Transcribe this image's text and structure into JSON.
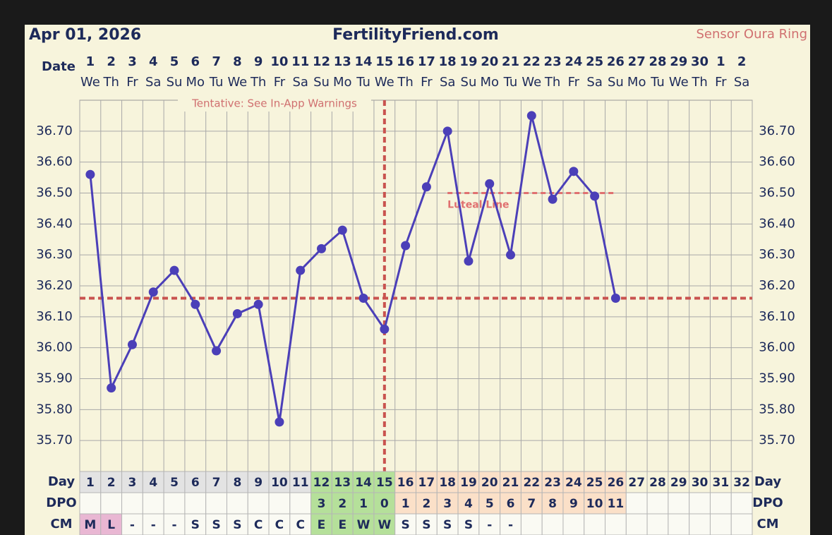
{
  "header": {
    "date": "Apr 01, 2026",
    "site": "FertilityFriend.com",
    "sensor": "Sensor Oura Ring"
  },
  "chart_data": {
    "type": "line",
    "x_label": "Date",
    "dates": [
      1,
      2,
      3,
      4,
      5,
      6,
      7,
      8,
      9,
      10,
      11,
      12,
      13,
      14,
      15,
      16,
      17,
      18,
      19,
      20,
      21,
      22,
      23,
      24,
      25,
      26,
      27,
      28,
      29,
      30,
      1,
      2
    ],
    "weekdays": [
      "We",
      "Th",
      "Fr",
      "Sa",
      "Su",
      "Mo",
      "Tu",
      "We",
      "Th",
      "Fr",
      "Sa",
      "Su",
      "Mo",
      "Tu",
      "We",
      "Th",
      "Fr",
      "Sa",
      "Su",
      "Mo",
      "Tu",
      "We",
      "Th",
      "Fr",
      "Sa",
      "Su",
      "Mo",
      "Tu",
      "We",
      "Th",
      "Fr",
      "Sa"
    ],
    "series": [
      {
        "color": "#4b3fb8",
        "values": [
          36.56,
          35.87,
          36.01,
          36.18,
          36.25,
          36.14,
          35.99,
          36.11,
          36.14,
          35.76,
          36.25,
          36.32,
          36.38,
          36.16,
          36.06,
          36.33,
          36.52,
          36.7,
          36.28,
          36.53,
          36.3,
          36.75,
          36.48,
          36.57,
          36.49,
          36.16,
          null,
          null,
          null,
          null,
          null,
          null
        ]
      }
    ],
    "ylim": [
      35.6,
      36.8
    ],
    "yticks": [
      {
        "value": 36.7,
        "label": "36.70"
      },
      {
        "value": 36.6,
        "label": "36.60"
      },
      {
        "value": 36.5,
        "label": "36.50"
      },
      {
        "value": 36.4,
        "label": "36.40"
      },
      {
        "value": 36.3,
        "label": "36.30"
      },
      {
        "value": 36.2,
        "label": "36.20"
      },
      {
        "value": 36.1,
        "label": "36.10"
      },
      {
        "value": 36.0,
        "label": "36.00"
      },
      {
        "value": 35.9,
        "label": "35.90"
      },
      {
        "value": 35.8,
        "label": "35.80"
      },
      {
        "value": 35.7,
        "label": "35.70"
      }
    ],
    "grid": true,
    "annotation": "Tentative: See In-App Warnings",
    "coverline": {
      "value": 36.16,
      "color": "#c9534f"
    },
    "ovulation_day": 15,
    "luteal_line": {
      "label": "Luteal Line",
      "value": 36.5,
      "x_range": [
        18,
        26
      ],
      "color": "#e07070"
    },
    "rows": [
      {
        "label": "Day",
        "cells": [
          1,
          2,
          3,
          4,
          5,
          6,
          7,
          8,
          9,
          10,
          11,
          12,
          13,
          14,
          15,
          16,
          17,
          18,
          19,
          20,
          21,
          22,
          23,
          24,
          25,
          26,
          27,
          28,
          29,
          30,
          31,
          32
        ],
        "colors": [
          "#e3e3e3",
          "#e3e3e3",
          "#e3e3e3",
          "#e3e3e3",
          "#e3e3e3",
          "#e3e3e3",
          "#e3e3e3",
          "#e3e3e3",
          "#e3e3e3",
          "#e3e3e3",
          "#e3e3e3",
          "#b5e09a",
          "#b5e09a",
          "#b5e09a",
          "#b5e09a",
          "#fbe0c8",
          "#fbe0c8",
          "#fbe0c8",
          "#fbe0c8",
          "#fbe0c8",
          "#fbe0c8",
          "#fbe0c8",
          "#fbe0c8",
          "#fbe0c8",
          "#fbe0c8",
          "#fbe0c8",
          "#f7f4dc",
          "#f7f4dc",
          "#f7f4dc",
          "#f7f4dc",
          "#f7f4dc",
          "#f7f4dc"
        ]
      },
      {
        "label": "DPO",
        "cells": [
          null,
          null,
          null,
          null,
          null,
          null,
          null,
          null,
          null,
          null,
          null,
          3,
          2,
          1,
          0,
          1,
          2,
          3,
          4,
          5,
          6,
          7,
          8,
          9,
          10,
          11,
          null,
          null,
          null,
          null,
          null,
          null
        ],
        "colors": [
          "#fafaf3",
          "#fafaf3",
          "#fafaf3",
          "#fafaf3",
          "#fafaf3",
          "#fafaf3",
          "#fafaf3",
          "#fafaf3",
          "#fafaf3",
          "#fafaf3",
          "#fafaf3",
          "#b5e09a",
          "#b5e09a",
          "#b5e09a",
          "#b5e09a",
          "#fbe0c8",
          "#fbe0c8",
          "#fbe0c8",
          "#fbe0c8",
          "#fbe0c8",
          "#fbe0c8",
          "#fbe0c8",
          "#fbe0c8",
          "#fbe0c8",
          "#fbe0c8",
          "#fbe0c8",
          "#fafaf3",
          "#fafaf3",
          "#fafaf3",
          "#fafaf3",
          "#fafaf3",
          "#fafaf3"
        ]
      },
      {
        "label": "CM",
        "cells": [
          "M",
          "L",
          "-",
          "-",
          "-",
          "S",
          "S",
          "S",
          "C",
          "C",
          "C",
          "E",
          "E",
          "W",
          "W",
          "S",
          "S",
          "S",
          "S",
          "-",
          "-",
          null,
          null,
          null,
          null,
          null,
          null,
          null,
          null,
          null,
          null,
          null
        ],
        "colors": [
          "#e9b7d3",
          "#e9b7d3",
          "#fafaf3",
          "#fafaf3",
          "#fafaf3",
          "#fafaf3",
          "#fafaf3",
          "#fafaf3",
          "#fafaf3",
          "#fafaf3",
          "#fafaf3",
          "#b5e09a",
          "#b5e09a",
          "#b5e09a",
          "#b5e09a",
          "#fafaf3",
          "#fafaf3",
          "#fafaf3",
          "#fafaf3",
          "#fafaf3",
          "#fafaf3",
          "#fafaf3",
          "#fafaf3",
          "#fafaf3",
          "#fafaf3",
          "#fafaf3",
          "#fafaf3",
          "#fafaf3",
          "#fafaf3",
          "#fafaf3",
          "#fafaf3",
          "#fafaf3"
        ]
      }
    ]
  }
}
